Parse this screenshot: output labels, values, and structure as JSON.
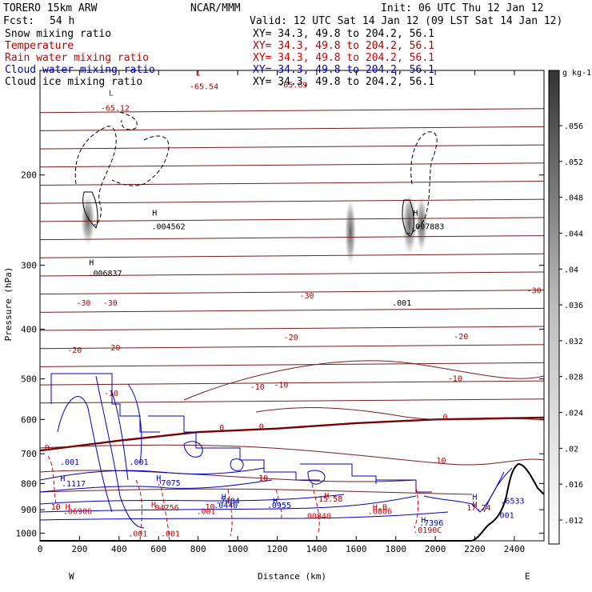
{
  "header": {
    "model": "TORERO  15km ARW",
    "org": "NCAR/MMM",
    "init": "Init: 06 UTC Thu 12 Jan 12",
    "fcst_label": "Fcst:",
    "fcst_value": "54 h",
    "valid": "Valid: 12 UTC Sat 14 Jan 12 (09 LST Sat 14 Jan 12)"
  },
  "fields": [
    {
      "name": "Snow mixing ratio",
      "color": "#000000",
      "xy": "XY=  34.3, 49.8 to 204.2, 56.1"
    },
    {
      "name": "Temperature",
      "color": "#b00000",
      "xy": "XY=  34.3, 49.8 to 204.2, 56.1"
    },
    {
      "name": "Rain water mixing ratio",
      "color": "#d00000",
      "xy": "XY=  34.3, 49.8 to 204.2, 56.1"
    },
    {
      "name": "Cloud water mixing ratio",
      "color": "#0000c0",
      "xy": "XY=  34.3, 49.8 to 204.2, 56.1"
    },
    {
      "name": "Cloud ice mixing ratio",
      "color": "#000000",
      "xy": "XY=  34.3, 49.8 to 204.2, 56.1"
    }
  ],
  "chart_data": {
    "type": "line",
    "xlabel": "Distance (km)",
    "ylabel": "Pressure (hPa)",
    "x_ticks": [
      0,
      200,
      400,
      600,
      800,
      1000,
      1200,
      1400,
      1600,
      1800,
      2000,
      2200,
      2400
    ],
    "y_ticks": [
      200,
      300,
      400,
      500,
      600,
      700,
      800,
      900,
      1000
    ],
    "xlim": [
      0,
      2550
    ],
    "ylim": [
      1035,
      125
    ],
    "y_scale": "log",
    "left_end": "W",
    "right_end": "E",
    "colorbar": {
      "unit": "g kg-1",
      "ticks": [
        ".056",
        ".052",
        ".048",
        ".044",
        ".04",
        ".036",
        ".032",
        ".028",
        ".024",
        ".02",
        ".016",
        ".012"
      ]
    },
    "temperature_contours": [
      {
        "label": "-65.12",
        "x": [
          0,
          2550
        ],
        "y": [
          140,
          140
        ]
      },
      {
        "label": "-30",
        "x": [
          0,
          2550
        ],
        "y": [
          355,
          355
        ]
      },
      {
        "label": "-20",
        "x": [
          0,
          2550
        ],
        "y": [
          425,
          425
        ]
      },
      {
        "label": "-10",
        "x": [
          0,
          2550
        ],
        "y": [
          522,
          522
        ]
      },
      {
        "label": "0",
        "x": [
          0,
          400,
          800,
          1200,
          1600,
          2000,
          2550
        ],
        "y": [
          690,
          660,
          635,
          625,
          610,
          600,
          595
        ]
      },
      {
        "label": "10",
        "x": [
          0,
          2550
        ],
        "y": [
          800,
          800
        ]
      }
    ],
    "contour_labels": [
      {
        "text": "L",
        "x": 360,
        "y": 140,
        "color": "#b00000"
      },
      {
        "text": "-65.12",
        "x": 380,
        "y": 150,
        "color": "#b00000"
      },
      {
        "text": "L",
        "x": 800,
        "y": 128,
        "color": "#b00000"
      },
      {
        "text": "-65.54",
        "x": 830,
        "y": 136,
        "color": "#b00000"
      },
      {
        "text": "-65.69",
        "x": 1280,
        "y": 135,
        "color": "#b00000"
      },
      {
        "text": "-30",
        "x": 220,
        "y": 360,
        "color": "#b00000"
      },
      {
        "text": "-30",
        "x": 355,
        "y": 360,
        "color": "#b00000"
      },
      {
        "text": "-30",
        "x": 1350,
        "y": 348,
        "color": "#b00000"
      },
      {
        "text": "-30",
        "x": 2500,
        "y": 340,
        "color": "#b00000"
      },
      {
        "text": "-20",
        "x": 175,
        "y": 445,
        "color": "#b00000"
      },
      {
        "text": "-20",
        "x": 370,
        "y": 440,
        "color": "#b00000"
      },
      {
        "text": "-20",
        "x": 1270,
        "y": 420,
        "color": "#b00000"
      },
      {
        "text": "-20",
        "x": 2130,
        "y": 418,
        "color": "#b00000"
      },
      {
        "text": "-10",
        "x": 360,
        "y": 540,
        "color": "#b00000"
      },
      {
        "text": "-10",
        "x": 1100,
        "y": 525,
        "color": "#b00000"
      },
      {
        "text": "-10",
        "x": 1220,
        "y": 520,
        "color": "#b00000"
      },
      {
        "text": "-10",
        "x": 2100,
        "y": 505,
        "color": "#b00000"
      },
      {
        "text": "0",
        "x": 35,
        "y": 690,
        "color": "#b00000"
      },
      {
        "text": "0",
        "x": 920,
        "y": 630,
        "color": "#b00000"
      },
      {
        "text": "0",
        "x": 1120,
        "y": 627,
        "color": "#b00000"
      },
      {
        "text": "0",
        "x": 2050,
        "y": 600,
        "color": "#b00000"
      },
      {
        "text": "10",
        "x": 2030,
        "y": 730,
        "color": "#b00000"
      },
      {
        "text": "10",
        "x": 1130,
        "y": 790,
        "color": "#b00000"
      },
      {
        "text": "10",
        "x": 80,
        "y": 900,
        "color": "#b00000"
      },
      {
        "text": "10",
        "x": 860,
        "y": 900,
        "color": "#b00000"
      },
      {
        "text": "H",
        "x": 1450,
        "y": 855,
        "color": "#b00000"
      },
      {
        "text": "15.58",
        "x": 1470,
        "y": 868,
        "color": "#b00000"
      },
      {
        "text": "H",
        "x": 2200,
        "y": 890,
        "color": "#b00000"
      },
      {
        "text": "17.74",
        "x": 2220,
        "y": 903,
        "color": "#b00000"
      },
      {
        "text": "H",
        "x": 575,
        "y": 890,
        "color": "#d00000"
      },
      {
        "text": ".04756",
        "x": 630,
        "y": 903,
        "color": "#d00000"
      },
      {
        "text": ".001",
        "x": 840,
        "y": 918,
        "color": "#d00000"
      },
      {
        "text": "H",
        "x": 140,
        "y": 900,
        "color": "#d00000"
      },
      {
        "text": ".06906",
        "x": 190,
        "y": 918,
        "color": "#d00000"
      },
      {
        "text": "H.B",
        "x": 1720,
        "y": 902,
        "color": "#d00000"
      },
      {
        "text": ".0806",
        "x": 1720,
        "y": 918,
        "color": "#d00000"
      },
      {
        "text": ".00840",
        "x": 1400,
        "y": 937,
        "color": "#d00000"
      },
      {
        "text": ".0190C",
        "x": 1960,
        "y": 998,
        "color": "#d00000"
      },
      {
        "text": ".001",
        "x": 495,
        "y": 1015,
        "color": "#d00000"
      },
      {
        "text": ".001",
        "x": 660,
        "y": 1015,
        "color": "#d00000"
      },
      {
        "text": ".001",
        "x": 150,
        "y": 735,
        "color": "#0000c0"
      },
      {
        "text": ".001",
        "x": 500,
        "y": 735,
        "color": "#0000c0"
      },
      {
        "text": "H",
        "x": 115,
        "y": 792,
        "color": "#0000c0"
      },
      {
        "text": ".1117",
        "x": 170,
        "y": 810,
        "color": "#0000c0"
      },
      {
        "text": "H",
        "x": 600,
        "y": 790,
        "color": "#0000c0"
      },
      {
        "text": ".7075",
        "x": 650,
        "y": 808,
        "color": "#0000c0"
      },
      {
        "text": "H",
        "x": 930,
        "y": 860,
        "color": "#0000c0"
      },
      {
        "text": ".7484",
        "x": 950,
        "y": 875,
        "color": "#0000c0"
      },
      {
        "text": ".0440",
        "x": 940,
        "y": 893,
        "color": "#0000c0"
      },
      {
        "text": "H",
        "x": 1190,
        "y": 875,
        "color": "#0000c0"
      },
      {
        "text": ".0955",
        "x": 1210,
        "y": 893,
        "color": "#0000c0"
      },
      {
        "text": "H",
        "x": 2200,
        "y": 860,
        "color": "#0000c0"
      },
      {
        "text": ".6533",
        "x": 2390,
        "y": 875,
        "color": "#0000c0"
      },
      {
        "text": ".001",
        "x": 2350,
        "y": 935,
        "color": "#0000c0"
      },
      {
        "text": "H",
        "x": 1940,
        "y": 955,
        "color": "#0000c0"
      },
      {
        "text": ".7396",
        "x": 1980,
        "y": 967,
        "color": "#0000c0"
      },
      {
        "text": "H",
        "x": 580,
        "y": 240,
        "color": "#000000"
      },
      {
        "text": ".004562",
        "x": 650,
        "y": 255,
        "color": "#000000"
      },
      {
        "text": "H",
        "x": 260,
        "y": 300,
        "color": "#000000"
      },
      {
        "text": ".006837",
        "x": 330,
        "y": 315,
        "color": "#000000"
      },
      {
        "text": "H",
        "x": 1900,
        "y": 240,
        "color": "#000000"
      },
      {
        "text": ".007883",
        "x": 1960,
        "y": 255,
        "color": "#000000"
      },
      {
        "text": ".001",
        "x": 1830,
        "y": 360,
        "color": "#000000"
      }
    ]
  }
}
